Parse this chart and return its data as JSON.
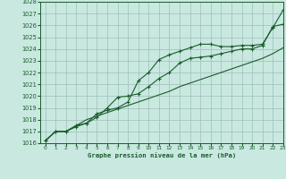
{
  "title": "Graphe pression niveau de la mer (hPa)",
  "xlim": [
    -0.5,
    23
  ],
  "ylim": [
    1016,
    1028
  ],
  "yticks": [
    1016,
    1017,
    1018,
    1019,
    1020,
    1021,
    1022,
    1023,
    1024,
    1025,
    1026,
    1027,
    1028
  ],
  "xticks": [
    0,
    1,
    2,
    3,
    4,
    5,
    6,
    7,
    8,
    9,
    10,
    11,
    12,
    13,
    14,
    15,
    16,
    17,
    18,
    19,
    20,
    21,
    22,
    23
  ],
  "bg_color": "#c8e8e0",
  "grid_color": "#9dbfb8",
  "line_color": "#1a5c2a",
  "series1_x": [
    0,
    1,
    2,
    3,
    4,
    5,
    6,
    7,
    8,
    9,
    10,
    11,
    12,
    13,
    14,
    15,
    16,
    17,
    18,
    19,
    20,
    21,
    22,
    23
  ],
  "series1_y": [
    1016.2,
    1017.0,
    1017.0,
    1017.5,
    1017.7,
    1018.5,
    1018.8,
    1019.0,
    1019.5,
    1021.3,
    1022.0,
    1023.1,
    1023.5,
    1023.8,
    1024.1,
    1024.4,
    1024.4,
    1024.2,
    1024.2,
    1024.3,
    1024.3,
    1024.4,
    1025.8,
    1027.3
  ],
  "series2_x": [
    0,
    1,
    2,
    3,
    4,
    5,
    6,
    7,
    8,
    9,
    10,
    11,
    12,
    13,
    14,
    15,
    16,
    17,
    18,
    19,
    20,
    21,
    22,
    23
  ],
  "series2_y": [
    1016.2,
    1017.0,
    1017.0,
    1017.4,
    1017.7,
    1018.2,
    1019.0,
    1019.9,
    1020.0,
    1020.2,
    1020.8,
    1021.5,
    1022.0,
    1022.8,
    1023.2,
    1023.3,
    1023.4,
    1023.6,
    1023.8,
    1024.0,
    1024.0,
    1024.3,
    1025.9,
    1026.1
  ],
  "series3_x": [
    0,
    1,
    2,
    3,
    4,
    5,
    6,
    7,
    8,
    9,
    10,
    11,
    12,
    13,
    14,
    15,
    16,
    17,
    18,
    19,
    20,
    21,
    22,
    23
  ],
  "series3_y": [
    1016.2,
    1017.0,
    1017.0,
    1017.5,
    1018.0,
    1018.3,
    1018.6,
    1018.9,
    1019.2,
    1019.5,
    1019.8,
    1020.1,
    1020.4,
    1020.8,
    1021.1,
    1021.4,
    1021.7,
    1022.0,
    1022.3,
    1022.6,
    1022.9,
    1023.2,
    1023.6,
    1024.1
  ]
}
